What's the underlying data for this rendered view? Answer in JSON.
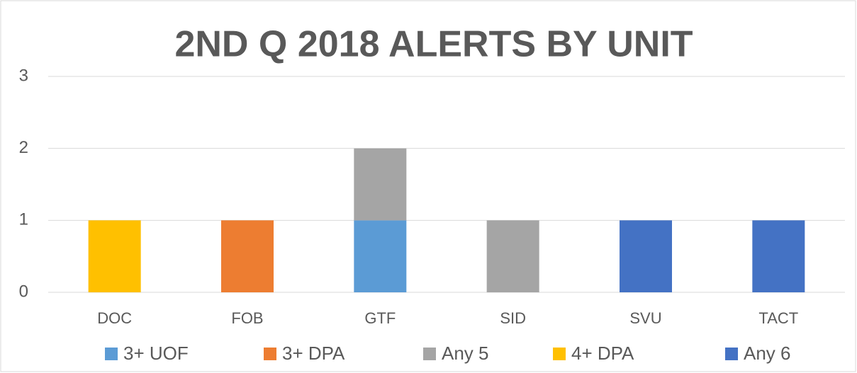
{
  "chart_data": {
    "type": "bar",
    "stacked": true,
    "title": "2ND Q 2018 ALERTS BY UNIT",
    "categories": [
      "DOC",
      "FOB",
      "GTF",
      "SID",
      "SVU",
      "TACT"
    ],
    "series": [
      {
        "name": "3+ UOF",
        "color": "#5b9bd5",
        "values": [
          0,
          0,
          1,
          0,
          0,
          0
        ]
      },
      {
        "name": "3+ DPA",
        "color": "#ed7d31",
        "values": [
          0,
          1,
          0,
          0,
          0,
          0
        ]
      },
      {
        "name": "Any 5",
        "color": "#a5a5a5",
        "values": [
          0,
          0,
          1,
          1,
          0,
          0
        ]
      },
      {
        "name": "4+ DPA",
        "color": "#ffc000",
        "values": [
          1,
          0,
          0,
          0,
          0,
          0
        ]
      },
      {
        "name": "Any 6",
        "color": "#4472c4",
        "values": [
          0,
          0,
          0,
          0,
          1,
          1
        ]
      }
    ],
    "ylim": [
      0,
      3
    ],
    "yticks": [
      0,
      1,
      2,
      3
    ],
    "grid": true,
    "legend": "bottom"
  }
}
